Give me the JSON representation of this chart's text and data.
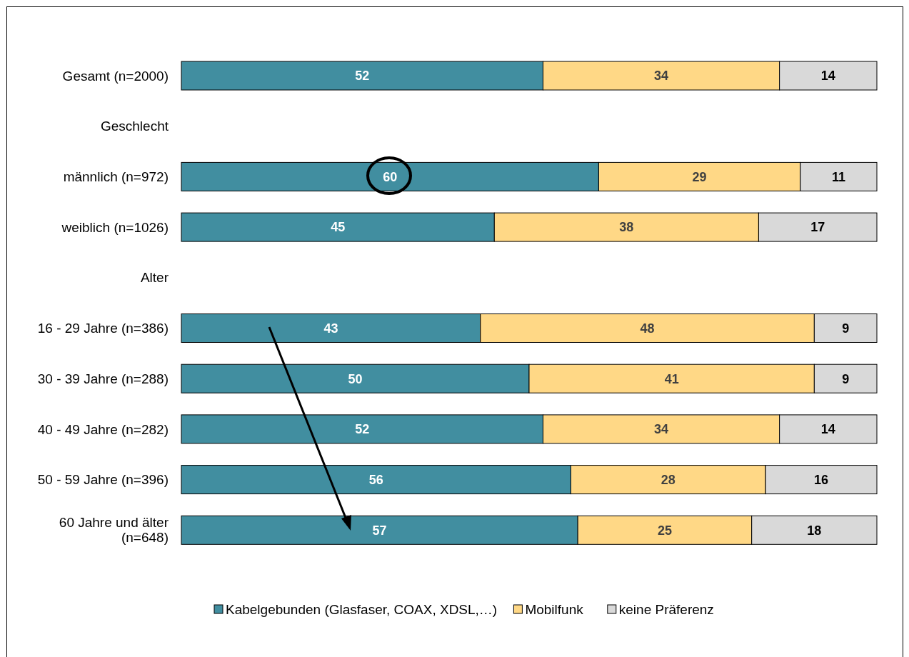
{
  "chart_data": {
    "type": "bar",
    "orientation": "horizontal",
    "stacked": true,
    "data_labels": true,
    "legend": "bottom",
    "tick_labels": "y",
    "xlim": [
      0,
      100
    ],
    "categories": [
      "Gesamt (n=2000)",
      "Geschlecht",
      "männlich (n=972)",
      "weiblich (n=1026)",
      "Alter",
      "16 - 29 Jahre (n=386)",
      "30 - 39 Jahre (n=288)",
      "40 - 49 Jahre (n=282)",
      "50 - 59 Jahre (n=396)",
      "60 Jahre und älter\n(n=648)"
    ],
    "series": [
      {
        "name": "Kabelgebunden (Glasfaser, COAX, XDSL,…)",
        "color": "#418ea0",
        "values": [
          52,
          null,
          60,
          45,
          null,
          43,
          50,
          52,
          56,
          57
        ]
      },
      {
        "name": "Mobilfunk",
        "color": "#ffd886",
        "values": [
          34,
          null,
          29,
          38,
          null,
          48,
          41,
          34,
          28,
          25
        ]
      },
      {
        "name": "keine Präferenz",
        "color": "#d9d9d9",
        "values": [
          14,
          null,
          11,
          17,
          null,
          9,
          9,
          14,
          16,
          18
        ]
      }
    ]
  }
}
